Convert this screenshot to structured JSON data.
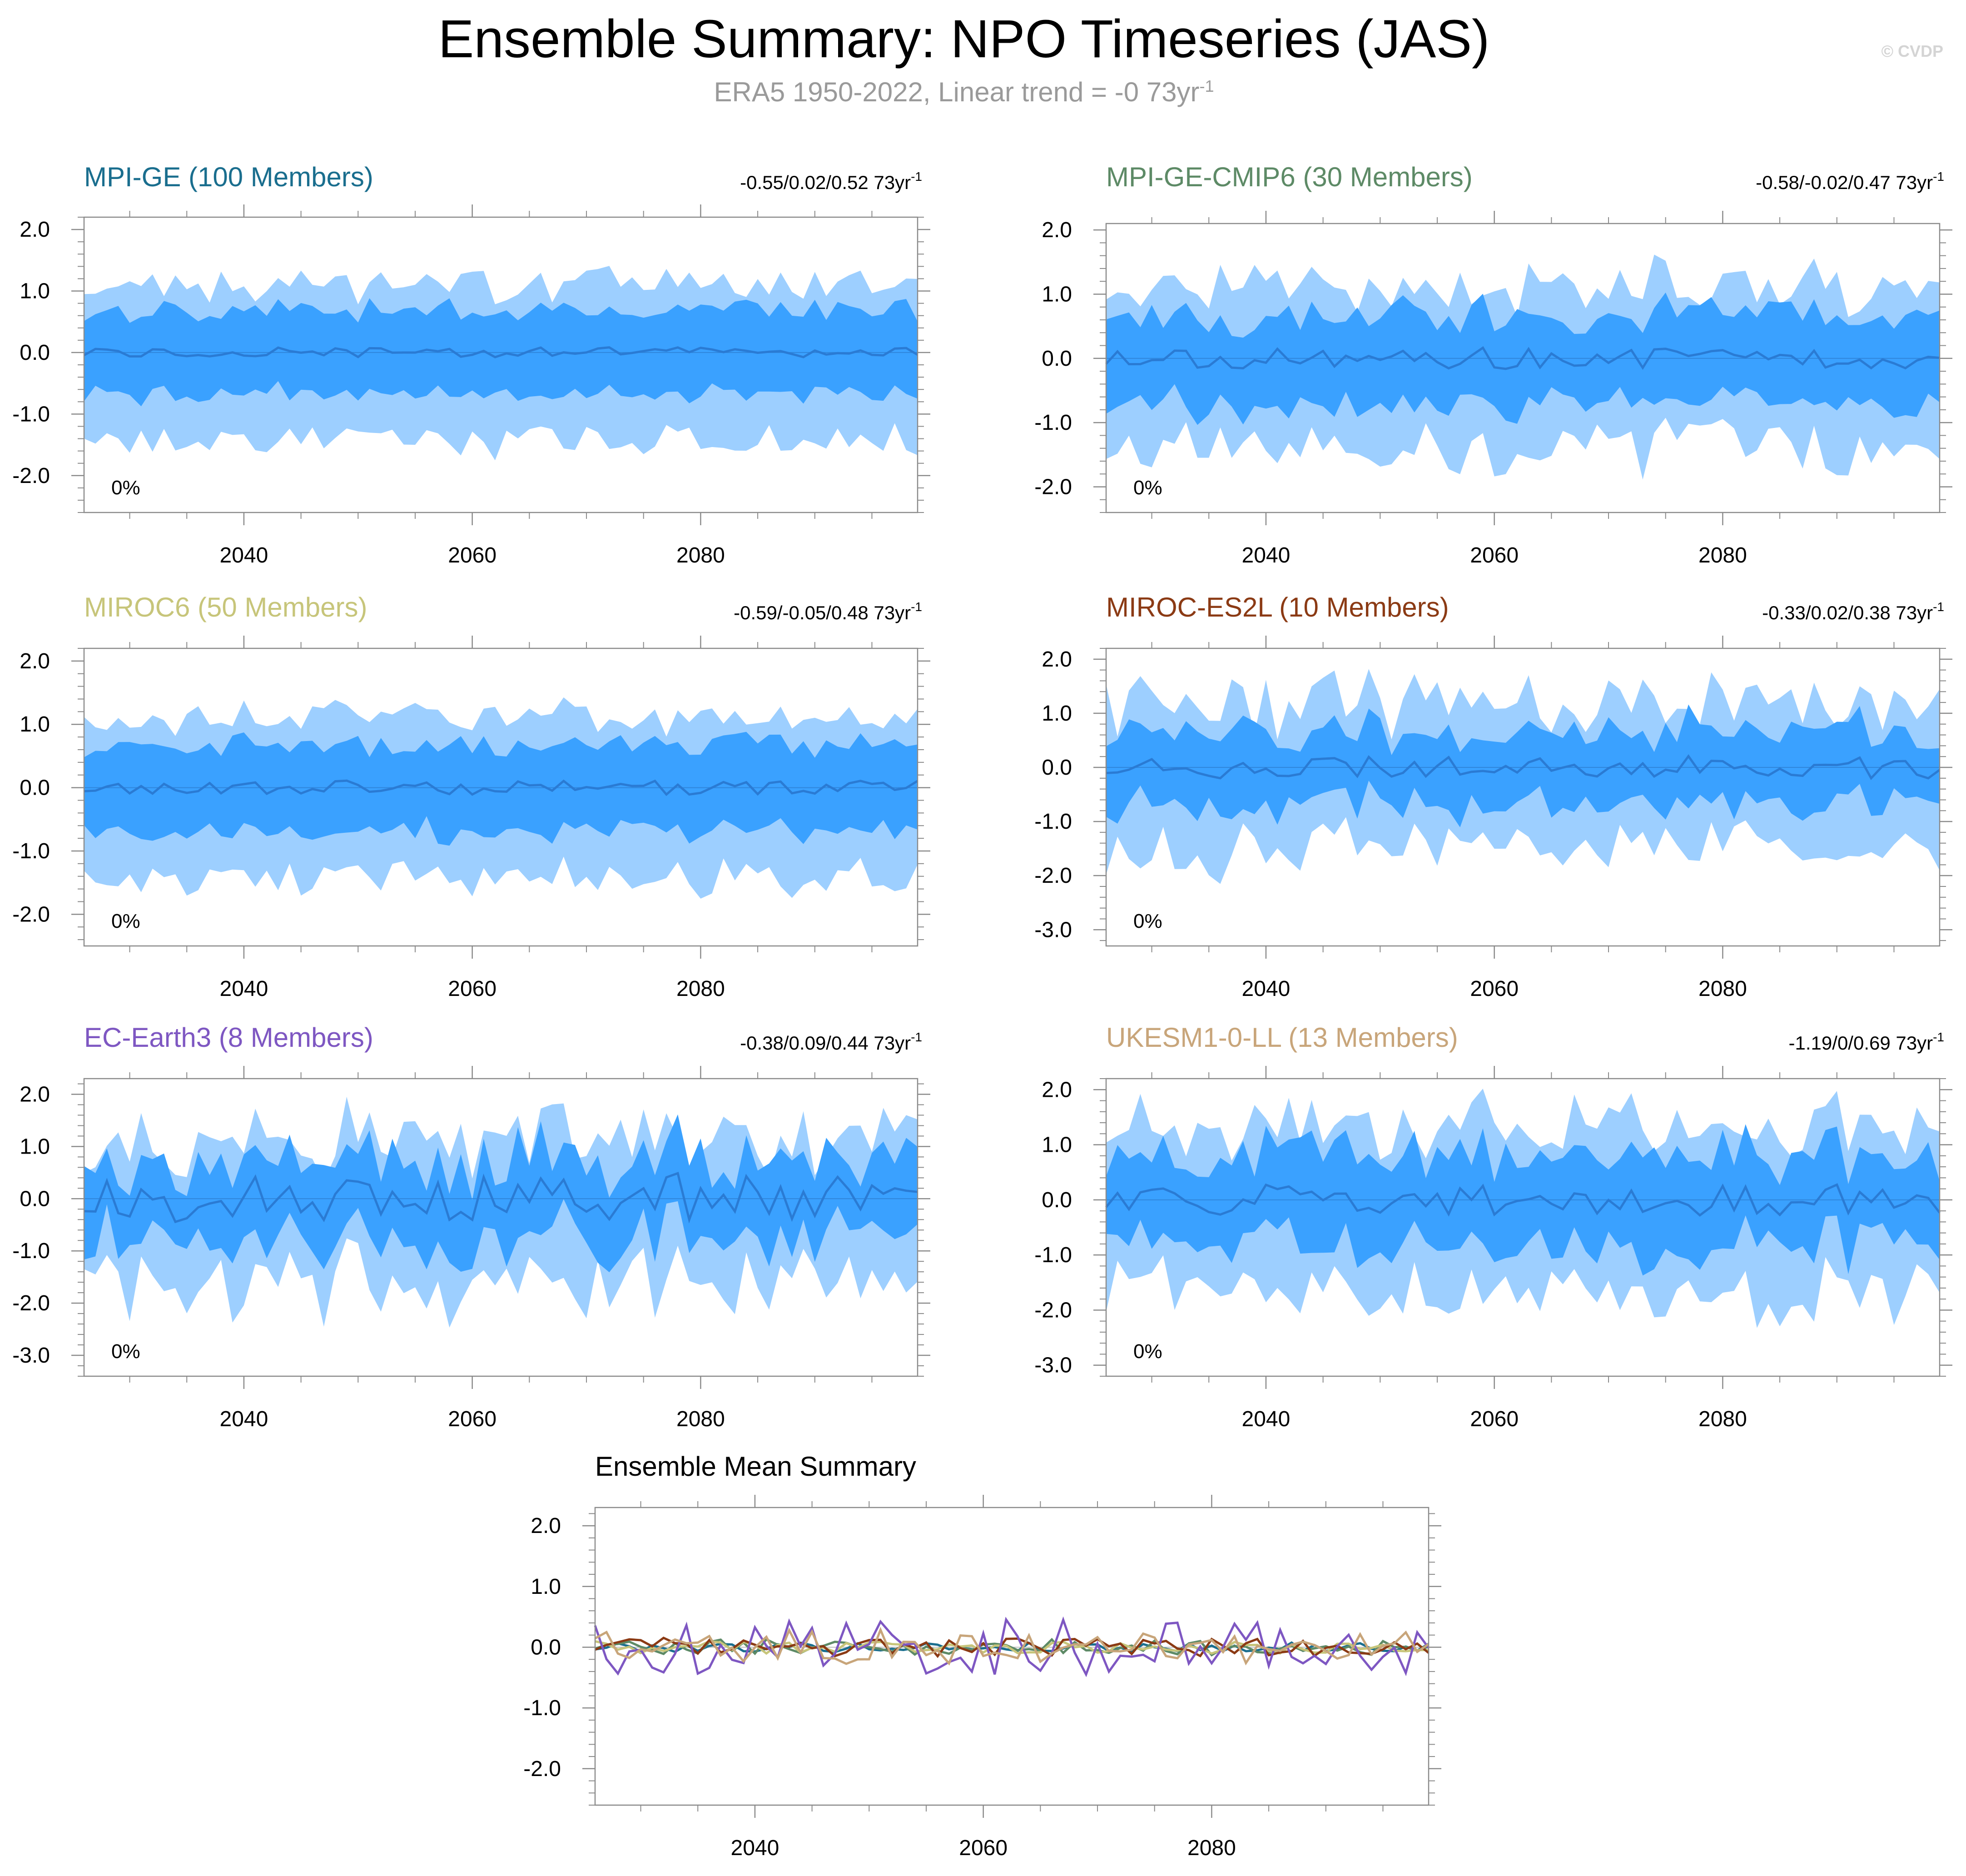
{
  "title": "Ensemble Summary: NPO Timeseries (JAS)",
  "subtitle": {
    "text": "ERA5 1950-2022, Linear trend = -0 73yr",
    "superscript": "-1"
  },
  "credit": "© CVDP",
  "chart_data": [
    {
      "type": "area",
      "title": "MPI-GE (100 Members)",
      "title_color": "#1a6e8e",
      "stat_text": "-0.55/0.02/0.52 73yr",
      "stat_superscript": "-1",
      "percent_label": "0%",
      "xlim": [
        2026,
        2099
      ],
      "ylim": [
        -2.6,
        2.2
      ],
      "yticks": [
        "2.0",
        "1.0",
        "0.0",
        "-1.0",
        "-2.0"
      ],
      "ytick_values": [
        2,
        1,
        0,
        -1,
        -2
      ],
      "xticks": [
        "2040",
        "2060",
        "2080"
      ],
      "xtick_values": [
        2040,
        2060,
        2080
      ],
      "series": [
        {
          "name": "10-90% range",
          "color": "#9dcfff",
          "half_width": 1.3,
          "jitter": 0.25
        },
        {
          "name": "25-75% range",
          "color": "#3aa1ff",
          "half_width": 0.72,
          "jitter": 0.15
        },
        {
          "name": "ensemble mean",
          "color": "#2a7bd4",
          "amplitude": 0.06
        }
      ],
      "seed": 11
    },
    {
      "type": "area",
      "title": "MPI-GE-CMIP6 (30 Members)",
      "title_color": "#5d8a66",
      "stat_text": "-0.58/-0.02/0.47 73yr",
      "stat_superscript": "-1",
      "percent_label": "0%",
      "xlim": [
        2026,
        2099
      ],
      "ylim": [
        -2.4,
        2.1
      ],
      "yticks": [
        "2.0",
        "1.0",
        "0.0",
        "-1.0",
        "-2.0"
      ],
      "ytick_values": [
        2,
        1,
        0,
        -1,
        -2
      ],
      "xticks": [
        "2040",
        "2060",
        "2080"
      ],
      "xtick_values": [
        2040,
        2060,
        2080
      ],
      "series": [
        {
          "name": "10-90% range",
          "color": "#9dcfff",
          "half_width": 1.3,
          "jitter": 0.38
        },
        {
          "name": "25-75% range",
          "color": "#3aa1ff",
          "half_width": 0.72,
          "jitter": 0.22
        },
        {
          "name": "ensemble mean",
          "color": "#2a7bd4",
          "amplitude": 0.12
        }
      ],
      "seed": 23
    },
    {
      "type": "area",
      "title": "MIROC6 (50 Members)",
      "title_color": "#c7c57a",
      "stat_text": "-0.59/-0.05/0.48 73yr",
      "stat_superscript": "-1",
      "percent_label": "0%",
      "xlim": [
        2026,
        2099
      ],
      "ylim": [
        -2.5,
        2.2
      ],
      "yticks": [
        "2.0",
        "1.0",
        "0.0",
        "-1.0",
        "-2.0"
      ],
      "ytick_values": [
        2,
        1,
        0,
        -1,
        -2
      ],
      "xticks": [
        "2040",
        "2060",
        "2080"
      ],
      "xtick_values": [
        2040,
        2060,
        2080
      ],
      "series": [
        {
          "name": "10-90% range",
          "color": "#9dcfff",
          "half_width": 1.3,
          "jitter": 0.25
        },
        {
          "name": "25-75% range",
          "color": "#3aa1ff",
          "half_width": 0.72,
          "jitter": 0.16
        },
        {
          "name": "ensemble mean",
          "color": "#2a7bd4",
          "amplitude": 0.08
        }
      ],
      "seed": 37
    },
    {
      "type": "area",
      "title": "MIROC-ES2L (10 Members)",
      "title_color": "#8b3a14",
      "stat_text": "-0.33/0.02/0.38 73yr",
      "stat_superscript": "-1",
      "percent_label": "0%",
      "xlim": [
        2026,
        2099
      ],
      "ylim": [
        -3.3,
        2.2
      ],
      "yticks": [
        "2.0",
        "1.0",
        "0.0",
        "-1.0",
        "-2.0",
        "-3.0"
      ],
      "ytick_values": [
        2,
        1,
        0,
        -1,
        -2,
        -3
      ],
      "xticks": [
        "2040",
        "2060",
        "2080"
      ],
      "xtick_values": [
        2040,
        2060,
        2080
      ],
      "series": [
        {
          "name": "10-90% range",
          "color": "#9dcfff",
          "half_width": 1.35,
          "jitter": 0.5
        },
        {
          "name": "25-75% range",
          "color": "#3aa1ff",
          "half_width": 0.72,
          "jitter": 0.3
        },
        {
          "name": "ensemble mean",
          "color": "#2a7bd4",
          "amplitude": 0.15
        }
      ],
      "seed": 41
    },
    {
      "type": "area",
      "title": "EC-Earth3 (8 Members)",
      "title_color": "#7e57c2",
      "stat_text": "-0.38/0.09/0.44 73yr",
      "stat_superscript": "-1",
      "percent_label": "0%",
      "xlim": [
        2026,
        2099
      ],
      "ylim": [
        -3.4,
        2.3
      ],
      "yticks": [
        "2.0",
        "1.0",
        "0.0",
        "-1.0",
        "-2.0",
        "-3.0"
      ],
      "ytick_values": [
        2,
        1,
        0,
        -1,
        -2,
        -3
      ],
      "xticks": [
        "2040",
        "2060",
        "2080"
      ],
      "xtick_values": [
        2040,
        2060,
        2080
      ],
      "series": [
        {
          "name": "10-90% range",
          "color": "#9dcfff",
          "half_width": 1.4,
          "jitter": 0.55
        },
        {
          "name": "25-75% range",
          "color": "#3aa1ff",
          "half_width": 0.8,
          "jitter": 0.4
        },
        {
          "name": "ensemble mean",
          "color": "#2a7bd4",
          "amplitude": 0.35
        }
      ],
      "seed": 53
    },
    {
      "type": "area",
      "title": "UKESM1-0-LL (13 Members)",
      "title_color": "#c8a57a",
      "stat_text": "-1.19/0/0.69 73yr",
      "stat_superscript": "-1",
      "percent_label": "0%",
      "xlim": [
        2026,
        2099
      ],
      "ylim": [
        -3.2,
        2.2
      ],
      "yticks": [
        "2.0",
        "1.0",
        "0.0",
        "-1.0",
        "-2.0",
        "-3.0"
      ],
      "ytick_values": [
        2,
        1,
        0,
        -1,
        -2,
        -3
      ],
      "xticks": [
        "2040",
        "2060",
        "2080"
      ],
      "xtick_values": [
        2040,
        2060,
        2080
      ],
      "series": [
        {
          "name": "10-90% range",
          "color": "#9dcfff",
          "half_width": 1.55,
          "jitter": 0.5
        },
        {
          "name": "25-75% range",
          "color": "#3aa1ff",
          "half_width": 0.85,
          "jitter": 0.35
        },
        {
          "name": "ensemble mean",
          "color": "#2a7bd4",
          "amplitude": 0.2
        }
      ],
      "seed": 67
    },
    {
      "type": "line",
      "title": "Ensemble Mean Summary",
      "title_color": "#000000",
      "xlim": [
        2026,
        2099
      ],
      "ylim": [
        -2.6,
        2.3
      ],
      "yticks": [
        "2.0",
        "1.0",
        "0.0",
        "-1.0",
        "-2.0"
      ],
      "ytick_values": [
        2,
        1,
        0,
        -1,
        -2
      ],
      "xticks": [
        "2040",
        "2060",
        "2080"
      ],
      "xtick_values": [
        2040,
        2060,
        2080
      ],
      "series": [
        {
          "name": "MPI-GE",
          "color": "#1a6e8e",
          "amplitude": 0.06
        },
        {
          "name": "MPI-GE-CMIP6",
          "color": "#5d8a66",
          "amplitude": 0.1
        },
        {
          "name": "MIROC6",
          "color": "#c7c57a",
          "amplitude": 0.08
        },
        {
          "name": "MIROC-ES2L",
          "color": "#8b3a14",
          "amplitude": 0.12
        },
        {
          "name": "EC-Earth3",
          "color": "#7e57c2",
          "amplitude": 0.35
        },
        {
          "name": "UKESM1-0-LL",
          "color": "#c8a57a",
          "amplitude": 0.22
        }
      ],
      "seed": 79
    }
  ]
}
